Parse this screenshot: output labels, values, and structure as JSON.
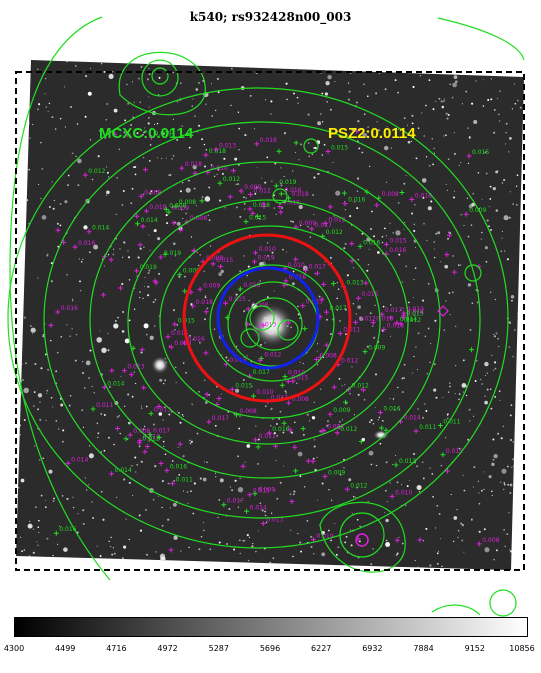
{
  "title": "k540; rs932428n00_003",
  "labels": {
    "mcxc": "MCXC:0.0114",
    "psz2": "PSZ2:0.0114"
  },
  "colors": {
    "contour": "#22dd22",
    "markers": "#dd22dd",
    "mcxc_label": "#22dd22",
    "psz2_label": "#ffee00",
    "red_circle": "#ee1111",
    "blue_circle": "#1122ee",
    "frame": "#000000"
  },
  "colorbar": {
    "ticks": [
      "4300",
      "4499",
      "4716",
      "4972",
      "5287",
      "5696",
      "6227",
      "6932",
      "7884",
      "9152",
      "10856"
    ]
  },
  "redshift_markers": [
    {
      "label": "0.011"
    },
    {
      "label": "0.017"
    },
    {
      "label": "0.016"
    },
    {
      "label": "0.015"
    },
    {
      "label": "0.013"
    },
    {
      "label": "0.012"
    },
    {
      "label": "0.019"
    },
    {
      "label": "0.010"
    },
    {
      "label": "0.014"
    },
    {
      "label": "0.018"
    },
    {
      "label": "0.009"
    },
    {
      "label": "0.008"
    }
  ]
}
